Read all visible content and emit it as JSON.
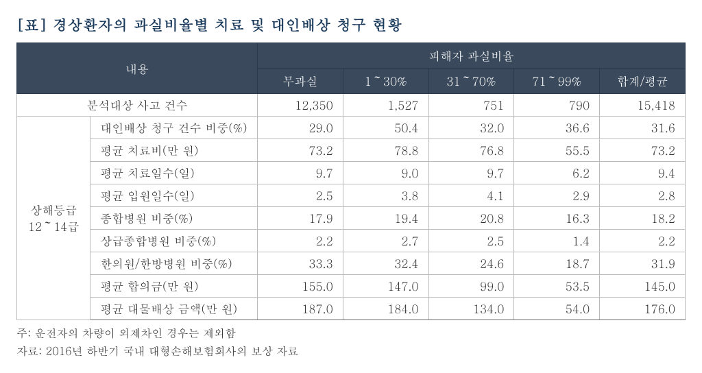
{
  "title": "[표] 경상환자의 과실비율별 치료 및 대인배상 청구 현황",
  "header": {
    "col1": "내용",
    "col2": "피해자 과실비율",
    "sub": [
      "무과실",
      "1～30%",
      "31～70%",
      "71～99%",
      "합계/평균"
    ]
  },
  "row_analysis": {
    "label": "분석대상 사고 건수",
    "values": [
      "12,350",
      "1,527",
      "751",
      "790",
      "15,418"
    ]
  },
  "category_label": "상해등급\n12～14급",
  "rows": [
    {
      "label": "대인배상 청구 건수 비중(%)",
      "values": [
        "29.0",
        "50.4",
        "32.0",
        "36.6",
        "31.6"
      ]
    },
    {
      "label": "평균 치료비(만 원)",
      "values": [
        "73.2",
        "78.8",
        "76.8",
        "55.5",
        "73.2"
      ]
    },
    {
      "label": "평균 치료일수(일)",
      "values": [
        "9.7",
        "9.0",
        "9.7",
        "6.2",
        "9.4"
      ]
    },
    {
      "label": "평균 입원일수(일)",
      "values": [
        "2.5",
        "3.8",
        "4.1",
        "2.9",
        "2.8"
      ]
    },
    {
      "label": "종합병원 비중(%)",
      "values": [
        "17.9",
        "19.4",
        "20.8",
        "16.3",
        "18.2"
      ]
    },
    {
      "label": "상급종합병원 비중(%)",
      "values": [
        "2.2",
        "2.7",
        "2.5",
        "1.4",
        "2.2"
      ]
    },
    {
      "label": "한의원/한방병원 비중(%)",
      "values": [
        "33.3",
        "32.4",
        "24.6",
        "18.7",
        "31.9"
      ]
    },
    {
      "label": "평균 합의금(만 원)",
      "values": [
        "155.0",
        "147.0",
        "99.0",
        "53.5",
        "145.0"
      ]
    },
    {
      "label": "평균 대물배상 금액(만 원)",
      "values": [
        "187.0",
        "184.0",
        "134.0",
        "54.0",
        "176.0"
      ]
    }
  ],
  "notes": {
    "line1": "주: 운전자의 차량이 외제차인 경우는 제외함",
    "line2": "자료: 2016년 하반기 국내 대형손해보험회사의 보상 자료"
  },
  "colors": {
    "title": "#1a3a5c",
    "header_bg": "#3a4a5c",
    "header_fg": "#ffffff",
    "border": "#bbbbbb",
    "text": "#333333",
    "background": "#ffffff"
  }
}
